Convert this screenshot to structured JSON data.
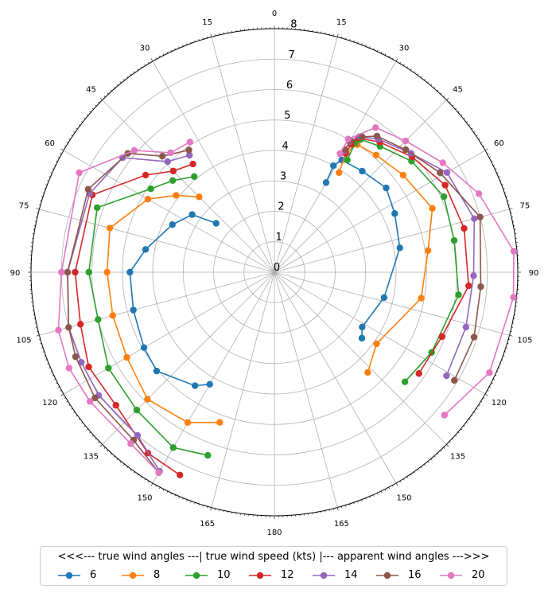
{
  "chart_data": {
    "type": "polar_line",
    "title": "",
    "angular_ticks": [
      "0",
      "15",
      "30",
      "45",
      "60",
      "75",
      "90",
      "105",
      "120",
      "135",
      "150",
      "165",
      "180",
      "165",
      "150",
      "135",
      "120",
      "105",
      "90",
      "75",
      "60",
      "45",
      "30",
      "15"
    ],
    "radial_ticks": [
      "0",
      "1",
      "2",
      "3",
      "4",
      "5",
      "6",
      "7",
      "8"
    ],
    "rlim": [
      0,
      8
    ],
    "grid": true,
    "left_side": "true wind angles",
    "right_side": "apparent wind angles",
    "legend": {
      "title": "<<<--- true wind angles ---| true wind speed (kts) |--- apparent wind angles --->>>",
      "placement": "bottom",
      "ncol": 7
    },
    "series": [
      {
        "name": "6",
        "color": "#1f77b4",
        "true_wind": [
          {
            "angle": 50,
            "speed": 2.5
          },
          {
            "angle": 55,
            "speed": 3.3
          },
          {
            "angle": 65,
            "speed": 3.7
          },
          {
            "angle": 80,
            "speed": 4.3
          },
          {
            "angle": 90,
            "speed": 4.75
          },
          {
            "angle": 105,
            "speed": 4.8
          },
          {
            "angle": 120,
            "speed": 4.95
          },
          {
            "angle": 130,
            "speed": 5.05
          },
          {
            "angle": 145,
            "speed": 4.55
          },
          {
            "angle": 150,
            "speed": 4.25
          }
        ],
        "apparent_wind": [
          {
            "angle": 30,
            "speed": 3.4
          },
          {
            "angle": 29,
            "speed": 4.0
          },
          {
            "angle": 31,
            "speed": 4.3
          },
          {
            "angle": 41,
            "speed": 4.4
          },
          {
            "angle": 53,
            "speed": 4.6
          },
          {
            "angle": 64,
            "speed": 4.4
          },
          {
            "angle": 79,
            "speed": 4.2
          },
          {
            "angle": 103,
            "speed": 3.7
          },
          {
            "angle": 122,
            "speed": 3.4
          },
          {
            "angle": 127,
            "speed": 3.6
          }
        ]
      },
      {
        "name": "8",
        "color": "#ff7f0e",
        "true_wind": [
          {
            "angle": 45,
            "speed": 3.5
          },
          {
            "angle": 52,
            "speed": 4.1
          },
          {
            "angle": 60,
            "speed": 4.8
          },
          {
            "angle": 75,
            "speed": 5.6
          },
          {
            "angle": 90,
            "speed": 5.5
          },
          {
            "angle": 105,
            "speed": 5.5
          },
          {
            "angle": 120,
            "speed": 5.6
          },
          {
            "angle": 135,
            "speed": 5.9
          },
          {
            "angle": 150,
            "speed": 5.7
          },
          {
            "angle": 160,
            "speed": 5.25
          }
        ],
        "apparent_wind": [
          {
            "angle": 33,
            "speed": 3.9
          },
          {
            "angle": 31,
            "speed": 4.6
          },
          {
            "angle": 33,
            "speed": 5.0
          },
          {
            "angle": 41,
            "speed": 5.1
          },
          {
            "angle": 53,
            "speed": 5.3
          },
          {
            "angle": 68,
            "speed": 5.6
          },
          {
            "angle": 82,
            "speed": 5.1
          },
          {
            "angle": 100,
            "speed": 4.9
          },
          {
            "angle": 125,
            "speed": 4.1
          },
          {
            "angle": 137,
            "speed": 4.5
          }
        ]
      },
      {
        "name": "10",
        "color": "#2ca02c",
        "true_wind": [
          {
            "angle": 40,
            "speed": 4.1
          },
          {
            "angle": 48,
            "speed": 4.5
          },
          {
            "angle": 56,
            "speed": 4.9
          },
          {
            "angle": 70,
            "speed": 6.2
          },
          {
            "angle": 90,
            "speed": 6.1
          },
          {
            "angle": 105,
            "speed": 6.0
          },
          {
            "angle": 120,
            "speed": 6.3
          },
          {
            "angle": 135,
            "speed": 6.4
          },
          {
            "angle": 150,
            "speed": 6.65
          },
          {
            "angle": 160,
            "speed": 6.4
          }
        ],
        "apparent_wind": [
          {
            "angle": 33,
            "speed": 4.4
          },
          {
            "angle": 32,
            "speed": 5.0
          },
          {
            "angle": 33,
            "speed": 5.2
          },
          {
            "angle": 40,
            "speed": 5.4
          },
          {
            "angle": 51,
            "speed": 5.8
          },
          {
            "angle": 66,
            "speed": 6.1
          },
          {
            "angle": 80,
            "speed": 6.0
          },
          {
            "angle": 97,
            "speed": 6.1
          },
          {
            "angle": 117,
            "speed": 5.8
          },
          {
            "angle": 130,
            "speed": 5.6
          }
        ]
      },
      {
        "name": "12",
        "color": "#d62728",
        "true_wind": [
          {
            "angle": 37,
            "speed": 4.45
          },
          {
            "angle": 45,
            "speed": 4.7
          },
          {
            "angle": 53,
            "speed": 5.3
          },
          {
            "angle": 67,
            "speed": 6.5
          },
          {
            "angle": 90,
            "speed": 6.55
          },
          {
            "angle": 105,
            "speed": 6.6
          },
          {
            "angle": 117,
            "speed": 6.85
          },
          {
            "angle": 130,
            "speed": 6.8
          },
          {
            "angle": 145,
            "speed": 7.25
          },
          {
            "angle": 155,
            "speed": 7.35
          }
        ],
        "apparent_wind": [
          {
            "angle": 31,
            "speed": 4.55
          },
          {
            "angle": 31,
            "speed": 4.9
          },
          {
            "angle": 32,
            "speed": 5.2
          },
          {
            "angle": 39,
            "speed": 5.5
          },
          {
            "angle": 50,
            "speed": 5.9
          },
          {
            "angle": 63,
            "speed": 6.3
          },
          {
            "angle": 77,
            "speed": 6.4
          },
          {
            "angle": 94,
            "speed": 6.4
          },
          {
            "angle": 111,
            "speed": 5.9
          },
          {
            "angle": 125,
            "speed": 5.8
          }
        ]
      },
      {
        "name": "14",
        "color": "#9467bd",
        "true_wind": [
          {
            "angle": 36,
            "speed": 4.75
          },
          {
            "angle": 44,
            "speed": 5.05
          },
          {
            "angle": 53,
            "speed": 6.25
          },
          {
            "angle": 67,
            "speed": 6.6
          },
          {
            "angle": 90,
            "speed": 6.8
          },
          {
            "angle": 105,
            "speed": 7.0
          },
          {
            "angle": 115,
            "speed": 7.0
          },
          {
            "angle": 125,
            "speed": 7.05
          },
          {
            "angle": 140,
            "speed": 7.0
          },
          {
            "angle": 150,
            "speed": 7.55
          }
        ],
        "apparent_wind": [
          {
            "angle": 30,
            "speed": 4.6
          },
          {
            "angle": 30,
            "speed": 4.95
          },
          {
            "angle": 32,
            "speed": 5.25
          },
          {
            "angle": 38,
            "speed": 5.55
          },
          {
            "angle": 49,
            "speed": 5.95
          },
          {
            "angle": 60,
            "speed": 6.55
          },
          {
            "angle": 75,
            "speed": 6.8
          },
          {
            "angle": 91,
            "speed": 6.55
          },
          {
            "angle": 106,
            "speed": 6.55
          },
          {
            "angle": 121,
            "speed": 6.6
          }
        ]
      },
      {
        "name": "16",
        "color": "#8c564b",
        "true_wind": [
          {
            "angle": 35,
            "speed": 4.9
          },
          {
            "angle": 44,
            "speed": 5.3
          },
          {
            "angle": 51,
            "speed": 6.2
          },
          {
            "angle": 66,
            "speed": 6.7
          },
          {
            "angle": 90,
            "speed": 6.8
          },
          {
            "angle": 105,
            "speed": 7.0
          },
          {
            "angle": 113,
            "speed": 7.1
          },
          {
            "angle": 125,
            "speed": 7.2
          },
          {
            "angle": 140,
            "speed": 7.2
          },
          {
            "angle": 150,
            "speed": 7.6
          }
        ],
        "apparent_wind": [
          {
            "angle": 30,
            "speed": 4.65
          },
          {
            "angle": 30,
            "speed": 5.0
          },
          {
            "angle": 33,
            "speed": 5.3
          },
          {
            "angle": 37,
            "speed": 5.6
          },
          {
            "angle": 47,
            "speed": 5.9
          },
          {
            "angle": 59,
            "speed": 6.35
          },
          {
            "angle": 75,
            "speed": 7.0
          },
          {
            "angle": 94,
            "speed": 6.8
          },
          {
            "angle": 108,
            "speed": 6.9
          },
          {
            "angle": 121,
            "speed": 6.9
          }
        ]
      },
      {
        "name": "20",
        "color": "#e377c2",
        "true_wind": [
          {
            "angle": 33,
            "speed": 5.1
          },
          {
            "angle": 41,
            "speed": 5.2
          },
          {
            "angle": 49,
            "speed": 6.1
          },
          {
            "angle": 63,
            "speed": 7.2
          },
          {
            "angle": 90,
            "speed": 7.0
          },
          {
            "angle": 105,
            "speed": 7.35
          },
          {
            "angle": 115,
            "speed": 7.45
          },
          {
            "angle": 125,
            "speed": 7.4
          },
          {
            "angle": 140,
            "speed": 7.35
          },
          {
            "angle": 150,
            "speed": 7.6
          }
        ],
        "apparent_wind": [
          {
            "angle": 29,
            "speed": 4.45
          },
          {
            "angle": 29,
            "speed": 5.0
          },
          {
            "angle": 35,
            "speed": 5.8
          },
          {
            "angle": 45,
            "speed": 6.1
          },
          {
            "angle": 57,
            "speed": 6.6
          },
          {
            "angle": 69,
            "speed": 7.2
          },
          {
            "angle": 85,
            "speed": 7.9
          },
          {
            "angle": 96,
            "speed": 7.9
          },
          {
            "angle": 115,
            "speed": 7.8
          },
          {
            "angle": 130,
            "speed": 7.3
          }
        ]
      }
    ]
  }
}
